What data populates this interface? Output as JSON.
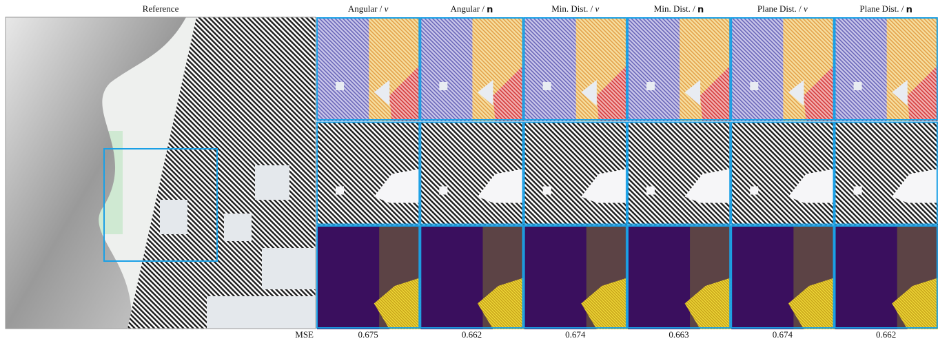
{
  "reference_label": "Reference",
  "row_label": "MSE",
  "symbol_style": {
    "v": "italic",
    "n": "bold"
  },
  "columns": [
    {
      "label": [
        "Angular / ",
        "v"
      ],
      "mse": 0.675
    },
    {
      "label": [
        "Angular / ",
        "n"
      ],
      "mse": 0.662
    },
    {
      "label": [
        "Min. Dist. / ",
        "v"
      ],
      "mse": 0.674
    },
    {
      "label": [
        "Min. Dist. / ",
        "n"
      ],
      "mse": 0.663
    },
    {
      "label": [
        "Plane Dist. / ",
        "v"
      ],
      "mse": 0.674
    },
    {
      "label": [
        "Plane Dist. / ",
        "n"
      ],
      "mse": 0.662
    }
  ]
}
